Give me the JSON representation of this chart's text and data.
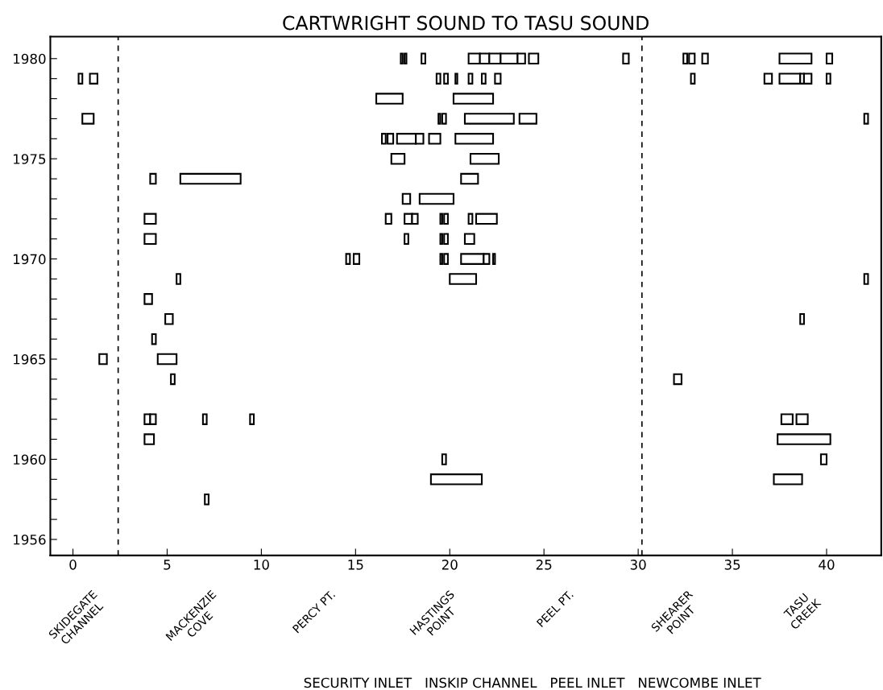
{
  "chart_data": {
    "type": "bar",
    "orientation": "horizontal",
    "title": "CARTWRIGHT SOUND TO TASU SOUND",
    "color": "#000000",
    "categories": [
      "1980",
      null,
      null,
      null,
      null,
      "1975",
      null,
      null,
      null,
      null,
      "1970",
      null,
      null,
      null,
      null,
      "1965",
      null,
      null,
      null,
      null,
      "1960",
      null,
      null,
      null,
      "1956"
    ],
    "series": [
      {
        "base": [
          17.4,
          0.3,
          16.1,
          0.5,
          16.4,
          16.9,
          4.1,
          17.5,
          3.8,
          3.8,
          14.5,
          5.5,
          3.8,
          4.9,
          4.2,
          1.4,
          5.2,
          null,
          3.8,
          3.8,
          19.6,
          19.0,
          7.0,
          null,
          null
        ],
        "values": [
          0.1,
          0.2,
          1.4,
          0.6,
          0.2,
          0.7,
          0.3,
          0.4,
          0.6,
          0.6,
          0.2,
          0.2,
          0.4,
          0.4,
          0.2,
          0.4,
          0.2,
          null,
          0.3,
          0.5,
          0.2,
          2.7,
          0.2,
          null,
          null
        ]
      },
      {
        "base": [
          17.6,
          0.9,
          20.2,
          19.4,
          16.7,
          21.1,
          5.7,
          18.4,
          16.6,
          17.6,
          14.9,
          20.0,
          null,
          38.6,
          null,
          4.5,
          31.9,
          null,
          4.1,
          37.4,
          39.7,
          37.2,
          null,
          null,
          null
        ],
        "values": [
          0.1,
          0.4,
          2.1,
          0.1,
          0.3,
          1.5,
          3.2,
          1.8,
          0.3,
          0.2,
          0.3,
          1.4,
          null,
          0.2,
          null,
          1.0,
          0.4,
          null,
          0.3,
          2.8,
          0.3,
          1.5,
          null,
          null,
          null
        ]
      },
      {
        "base": [
          18.5,
          19.3,
          null,
          19.6,
          17.2,
          null,
          20.6,
          null,
          17.6,
          19.5,
          19.5,
          42.0,
          null,
          null,
          null,
          null,
          null,
          null,
          6.9,
          null,
          null,
          null,
          null,
          null,
          null
        ],
        "values": [
          0.2,
          0.2,
          null,
          0.2,
          1.0,
          null,
          0.9,
          null,
          0.4,
          0.1,
          0.1,
          0.2,
          null,
          null,
          null,
          null,
          null,
          null,
          0.2,
          null,
          null,
          null,
          null,
          null,
          null
        ]
      },
      {
        "base": [
          21.0,
          19.7,
          null,
          20.8,
          18.2,
          null,
          null,
          null,
          18.0,
          19.7,
          19.7,
          null,
          null,
          null,
          null,
          null,
          null,
          null,
          9.4,
          null,
          null,
          null,
          null,
          null,
          null
        ],
        "values": [
          0.6,
          0.2,
          null,
          2.6,
          0.4,
          null,
          null,
          null,
          0.3,
          0.2,
          0.2,
          null,
          null,
          null,
          null,
          null,
          null,
          null,
          0.2,
          null,
          null,
          null,
          null,
          null,
          null
        ]
      },
      {
        "base": [
          21.6,
          20.3,
          null,
          23.7,
          18.9,
          null,
          null,
          null,
          19.5,
          20.8,
          20.6,
          null,
          null,
          null,
          null,
          null,
          null,
          null,
          37.6,
          null,
          null,
          null,
          null,
          null,
          null
        ],
        "values": [
          0.5,
          0.1,
          null,
          0.9,
          0.6,
          null,
          null,
          null,
          0.1,
          0.5,
          1.2,
          null,
          null,
          null,
          null,
          null,
          null,
          null,
          0.6,
          null,
          null,
          null,
          null,
          null,
          null
        ]
      },
      {
        "base": [
          22.1,
          21.0,
          null,
          42.0,
          20.3,
          null,
          null,
          null,
          19.7,
          null,
          21.8,
          null,
          null,
          null,
          null,
          null,
          null,
          null,
          38.4,
          null,
          null,
          null,
          null,
          null,
          null
        ],
        "values": [
          0.6,
          0.2,
          null,
          0.2,
          2.0,
          null,
          null,
          null,
          0.2,
          null,
          0.3,
          null,
          null,
          null,
          null,
          null,
          null,
          null,
          0.6,
          null,
          null,
          null,
          null,
          null,
          null
        ]
      },
      {
        "base": [
          22.7,
          21.7,
          null,
          null,
          null,
          null,
          null,
          null,
          21.0,
          null,
          22.3,
          null,
          null,
          null,
          null,
          null,
          null,
          null,
          null,
          null,
          null,
          null,
          null,
          null,
          null
        ],
        "values": [
          0.9,
          0.2,
          null,
          null,
          null,
          null,
          null,
          null,
          0.2,
          null,
          0.1,
          null,
          null,
          null,
          null,
          null,
          null,
          null,
          null,
          null,
          null,
          null,
          null,
          null,
          null
        ]
      },
      {
        "base": [
          23.6,
          22.4,
          null,
          null,
          null,
          null,
          null,
          null,
          21.4,
          null,
          null,
          null,
          null,
          null,
          null,
          null,
          null,
          null,
          null,
          null,
          null,
          null,
          null,
          null,
          null
        ],
        "values": [
          0.4,
          0.3,
          null,
          null,
          null,
          null,
          null,
          null,
          1.1,
          null,
          null,
          null,
          null,
          null,
          null,
          null,
          null,
          null,
          null,
          null,
          null,
          null,
          null,
          null,
          null
        ]
      },
      {
        "base": [
          24.2,
          32.8,
          null,
          null,
          null,
          null,
          null,
          null,
          null,
          null,
          null,
          null,
          null,
          null,
          null,
          null,
          null,
          null,
          null,
          null,
          null,
          null,
          null,
          null,
          null
        ],
        "values": [
          0.5,
          0.2,
          null,
          null,
          null,
          null,
          null,
          null,
          null,
          null,
          null,
          null,
          null,
          null,
          null,
          null,
          null,
          null,
          null,
          null,
          null,
          null,
          null,
          null,
          null
        ]
      },
      {
        "base": [
          29.2,
          36.7,
          null,
          null,
          null,
          null,
          null,
          null,
          null,
          null,
          null,
          null,
          null,
          null,
          null,
          null,
          null,
          null,
          null,
          null,
          null,
          null,
          null,
          null,
          null
        ],
        "values": [
          0.3,
          0.4,
          null,
          null,
          null,
          null,
          null,
          null,
          null,
          null,
          null,
          null,
          null,
          null,
          null,
          null,
          null,
          null,
          null,
          null,
          null,
          null,
          null,
          null,
          null
        ]
      },
      {
        "base": [
          32.4,
          37.5,
          null,
          null,
          null,
          null,
          null,
          null,
          null,
          null,
          null,
          null,
          null,
          null,
          null,
          null,
          null,
          null,
          null,
          null,
          null,
          null,
          null,
          null,
          null
        ],
        "values": [
          0.2,
          1.1,
          null,
          null,
          null,
          null,
          null,
          null,
          null,
          null,
          null,
          null,
          null,
          null,
          null,
          null,
          null,
          null,
          null,
          null,
          null,
          null,
          null,
          null,
          null
        ]
      },
      {
        "base": [
          32.7,
          38.6,
          null,
          null,
          null,
          null,
          null,
          null,
          null,
          null,
          null,
          null,
          null,
          null,
          null,
          null,
          null,
          null,
          null,
          null,
          null,
          null,
          null,
          null,
          null
        ],
        "values": [
          0.3,
          0.2,
          null,
          null,
          null,
          null,
          null,
          null,
          null,
          null,
          null,
          null,
          null,
          null,
          null,
          null,
          null,
          null,
          null,
          null,
          null,
          null,
          null,
          null,
          null
        ]
      },
      {
        "base": [
          33.4,
          38.8,
          null,
          null,
          null,
          null,
          null,
          null,
          null,
          null,
          null,
          null,
          null,
          null,
          null,
          null,
          null,
          null,
          null,
          null,
          null,
          null,
          null,
          null,
          null
        ],
        "values": [
          0.3,
          0.4,
          null,
          null,
          null,
          null,
          null,
          null,
          null,
          null,
          null,
          null,
          null,
          null,
          null,
          null,
          null,
          null,
          null,
          null,
          null,
          null,
          null,
          null,
          null
        ]
      },
      {
        "base": [
          37.5,
          40.0,
          null,
          null,
          null,
          null,
          null,
          null,
          null,
          null,
          null,
          null,
          null,
          null,
          null,
          null,
          null,
          null,
          null,
          null,
          null,
          null,
          null,
          null,
          null
        ],
        "values": [
          1.7,
          0.2,
          null,
          null,
          null,
          null,
          null,
          null,
          null,
          null,
          null,
          null,
          null,
          null,
          null,
          null,
          null,
          null,
          null,
          null,
          null,
          null,
          null,
          null,
          null
        ]
      },
      {
        "base": [
          40.0,
          null,
          null,
          null,
          null,
          null,
          null,
          null,
          null,
          null,
          null,
          null,
          null,
          null,
          null,
          null,
          null,
          null,
          null,
          null,
          null,
          null,
          null,
          null,
          null
        ],
        "values": [
          0.3,
          null,
          null,
          null,
          null,
          null,
          null,
          null,
          null,
          null,
          null,
          null,
          null,
          null,
          null,
          null,
          null,
          null,
          null,
          null,
          null,
          null,
          null,
          null,
          null
        ]
      }
    ],
    "xlim": [
      -1.2,
      42.9
    ],
    "xticks": [
      0,
      5,
      10,
      15,
      20,
      25,
      30,
      35,
      40
    ],
    "ref_lines": [
      {
        "axis": "x",
        "value": 2.4,
        "line_style": "dashed",
        "color": "#000000"
      },
      {
        "axis": "x",
        "value": 30.2,
        "line_style": "dashed",
        "color": "#000000"
      }
    ],
    "annotations": [
      "SKIDEGATE\nCHANNEL",
      "MACKENZIE\nCOVE",
      "PERCY PT.",
      "HASTINGS\nPOINT",
      "PEEL PT.",
      "SHEARER\nPOINT",
      "TASU\nCREEK",
      "SECURITY INLET   INSKIP CHANNEL   PEEL INLET   NEWCOMBE INLET"
    ],
    "grid": false,
    "legend": false
  }
}
